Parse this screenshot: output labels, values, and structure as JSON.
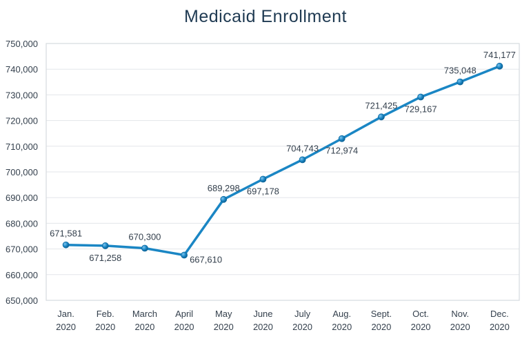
{
  "chart_data": {
    "type": "line",
    "title": "Medicaid Enrollment",
    "xlabel": "",
    "ylabel": "",
    "categories": [
      [
        "Jan.",
        "2020"
      ],
      [
        "Feb.",
        "2020"
      ],
      [
        "March",
        "2020"
      ],
      [
        "April",
        "2020"
      ],
      [
        "May",
        "2020"
      ],
      [
        "June",
        "2020"
      ],
      [
        "July",
        "2020"
      ],
      [
        "Aug.",
        "2020"
      ],
      [
        "Sept.",
        "2020"
      ],
      [
        "Oct.",
        "2020"
      ],
      [
        "Nov.",
        "2020"
      ],
      [
        "Dec.",
        "2020"
      ]
    ],
    "series": [
      {
        "name": "Medicaid Enrollment",
        "color": "#1a86c4",
        "values": [
          671581,
          671258,
          670300,
          667610,
          689298,
          697178,
          704743,
          712974,
          721425,
          729167,
          735048,
          741177
        ],
        "labels": [
          "671,581",
          "671,258",
          "670,300",
          "667,610",
          "689,298",
          "697,178",
          "704,743",
          "712,974",
          "721,425",
          "729,167",
          "735,048",
          "741,177"
        ],
        "label_positions": [
          "above",
          "below",
          "above",
          "right",
          "above",
          "below",
          "above",
          "below",
          "above",
          "below",
          "above",
          "above"
        ]
      }
    ],
    "ylim": [
      650000,
      750000
    ],
    "yticks": [
      650000,
      660000,
      670000,
      680000,
      690000,
      700000,
      710000,
      720000,
      730000,
      740000,
      750000
    ],
    "ytick_labels": [
      "650,000",
      "660,000",
      "670,000",
      "680,000",
      "690,000",
      "700,000",
      "710,000",
      "720,000",
      "730,000",
      "740,000",
      "750,000"
    ],
    "grid": true,
    "legend": "none"
  }
}
